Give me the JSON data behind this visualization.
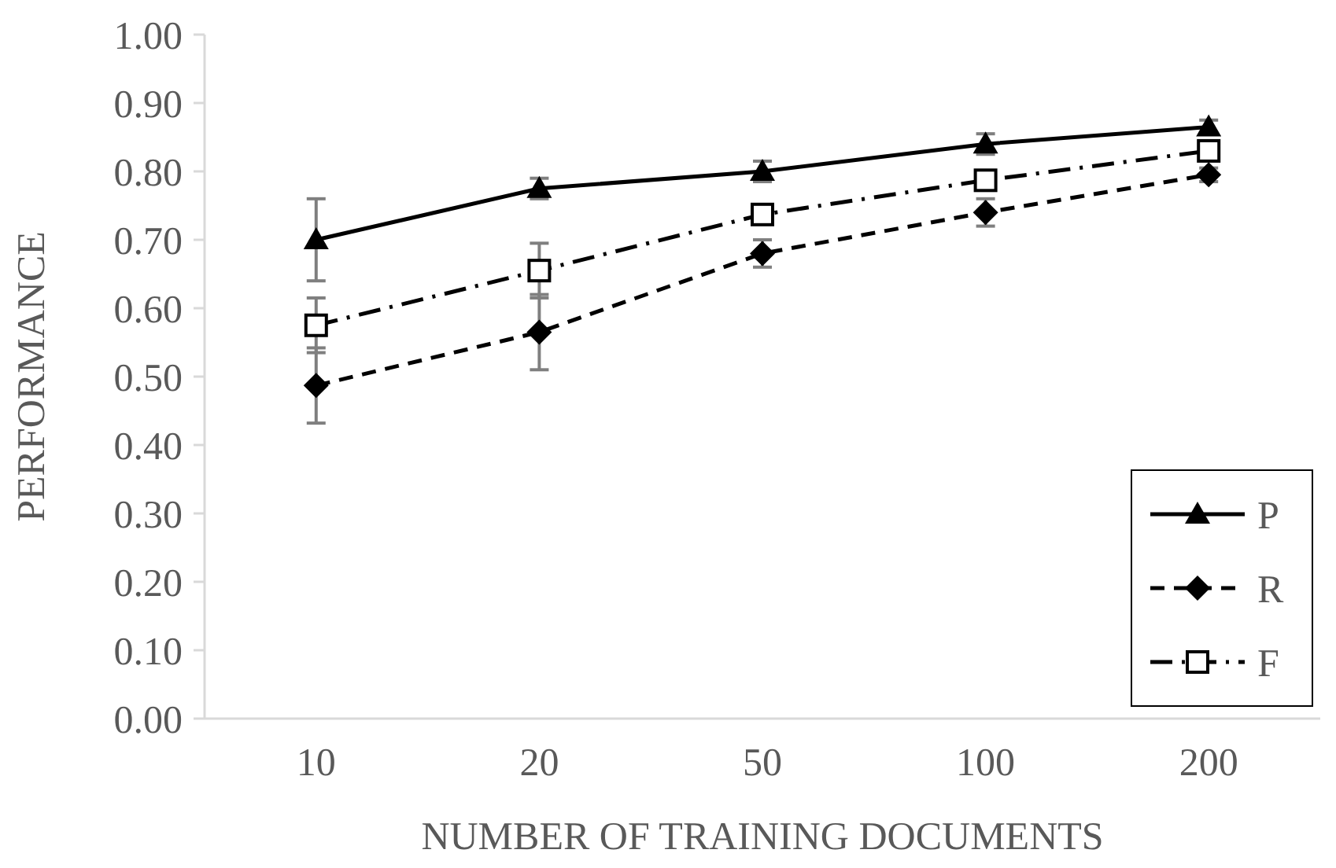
{
  "chart_data": {
    "type": "line",
    "xlabel": "NUMBER OF TRAINING DOCUMENTS",
    "ylabel": "PERFORMANCE",
    "categories": [
      "10",
      "20",
      "50",
      "100",
      "200"
    ],
    "ylim": [
      0,
      1
    ],
    "yticks": [
      {
        "value": 0,
        "label": "0.00"
      },
      {
        "value": 0.1,
        "label": "0.10"
      },
      {
        "value": 0.2,
        "label": "0.20"
      },
      {
        "value": 0.3,
        "label": "0.30"
      },
      {
        "value": 0.4,
        "label": "0.40"
      },
      {
        "value": 0.5,
        "label": "0.50"
      },
      {
        "value": 0.6,
        "label": "0.60"
      },
      {
        "value": 0.7,
        "label": "0.70"
      },
      {
        "value": 0.8,
        "label": "0.80"
      },
      {
        "value": 0.9,
        "label": "0.90"
      },
      {
        "value": 1,
        "label": "1.00"
      }
    ],
    "grid": false,
    "legend": "bottom right",
    "series": [
      {
        "name": "P",
        "color": "#000000",
        "marker": "triangle",
        "line_style": "solid",
        "values": [
          0.7,
          0.775,
          0.8,
          0.84,
          0.865
        ],
        "errors": [
          0.06,
          0.015,
          0.015,
          0.015,
          0.01
        ]
      },
      {
        "name": "R",
        "color": "#000000",
        "marker": "diamond",
        "line_style": "dashed",
        "values": [
          0.487,
          0.565,
          0.68,
          0.74,
          0.795
        ],
        "errors": [
          0.055,
          0.055,
          0.02,
          0.02,
          0.01
        ]
      },
      {
        "name": "F",
        "color": "#000000",
        "marker": "square",
        "line_style": "dashdot",
        "values": [
          0.575,
          0.655,
          0.737,
          0.787,
          0.83
        ],
        "errors": [
          0.04,
          0.04,
          0.01,
          0.01,
          0.01
        ]
      }
    ]
  }
}
